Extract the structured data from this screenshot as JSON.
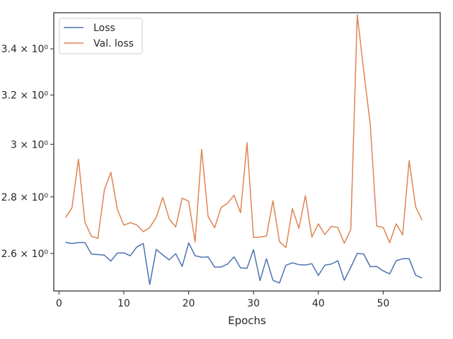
{
  "chart_data": {
    "type": "line",
    "title": "",
    "xlabel": "Epochs",
    "ylabel": "",
    "yscale": "log",
    "xlim": [
      -0.8,
      58.8
    ],
    "ylim": [
      2.475,
      3.565
    ],
    "x_ticks": [
      0,
      10,
      20,
      30,
      40,
      50
    ],
    "x_tick_labels": [
      "0",
      "10",
      "20",
      "30",
      "40",
      "50"
    ],
    "y_ticks": [
      2.6,
      2.8,
      3.0,
      3.2,
      3.4
    ],
    "y_tick_labels": [
      "2.6 × 10⁰",
      "2.8 × 10⁰",
      "3 × 10⁰",
      "3.2 × 10⁰",
      "3.4 × 10⁰"
    ],
    "grid": false,
    "legend_position": "top-left",
    "x": [
      1,
      2,
      3,
      4,
      5,
      6,
      7,
      8,
      9,
      10,
      11,
      12,
      13,
      14,
      15,
      16,
      17,
      18,
      19,
      20,
      21,
      22,
      23,
      24,
      25,
      26,
      27,
      28,
      29,
      30,
      31,
      32,
      33,
      34,
      35,
      36,
      37,
      38,
      39,
      40,
      41,
      42,
      43,
      44,
      45,
      46,
      47,
      48,
      49,
      50,
      51,
      52,
      53,
      54,
      55,
      56
    ],
    "series": [
      {
        "name": "Loss",
        "color": "#4c72b0",
        "values": [
          2.638,
          2.634,
          2.637,
          2.637,
          2.598,
          2.596,
          2.594,
          2.574,
          2.601,
          2.602,
          2.592,
          2.622,
          2.634,
          2.496,
          2.614,
          2.595,
          2.578,
          2.599,
          2.556,
          2.636,
          2.592,
          2.587,
          2.588,
          2.554,
          2.554,
          2.564,
          2.588,
          2.551,
          2.55,
          2.613,
          2.509,
          2.582,
          2.51,
          2.501,
          2.56,
          2.568,
          2.562,
          2.561,
          2.565,
          2.526,
          2.56,
          2.564,
          2.575,
          2.51,
          2.553,
          2.6,
          2.598,
          2.555,
          2.556,
          2.541,
          2.531,
          2.575,
          2.582,
          2.582,
          2.527,
          2.517
        ]
      },
      {
        "name": "Val. loss",
        "color": "#dd8452",
        "values": [
          2.725,
          2.76,
          2.942,
          2.708,
          2.659,
          2.652,
          2.826,
          2.892,
          2.755,
          2.698,
          2.707,
          2.699,
          2.675,
          2.69,
          2.726,
          2.798,
          2.72,
          2.692,
          2.795,
          2.784,
          2.64,
          2.98,
          2.729,
          2.689,
          2.761,
          2.777,
          2.806,
          2.742,
          3.006,
          2.655,
          2.656,
          2.66,
          2.786,
          2.641,
          2.62,
          2.757,
          2.687,
          2.805,
          2.656,
          2.703,
          2.665,
          2.694,
          2.69,
          2.635,
          2.683,
          3.555,
          3.302,
          3.08,
          2.695,
          2.69,
          2.637,
          2.703,
          2.664,
          2.936,
          2.764,
          2.715
        ]
      }
    ]
  }
}
